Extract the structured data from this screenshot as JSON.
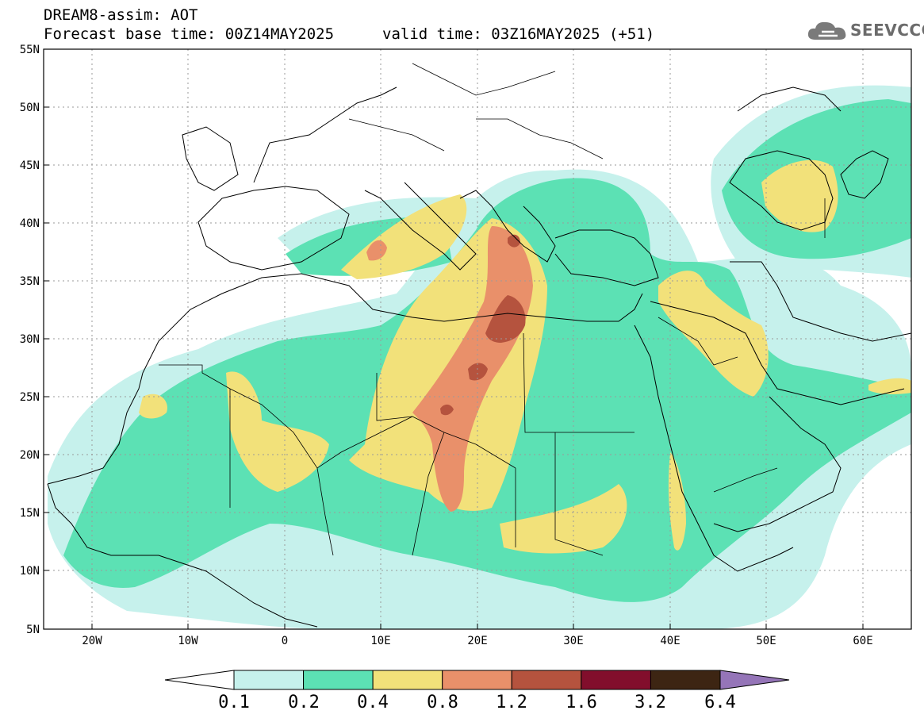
{
  "header": {
    "line1": "DREAM8-assim: AOT",
    "line2": "Forecast base time: 00Z14MAY2025",
    "line3": "valid time: 03Z16MAY2025 (+51)"
  },
  "logo": {
    "text": "SEEVCCC",
    "icon": "cloud-icon"
  },
  "map": {
    "lon_range": [
      -25,
      65
    ],
    "lat_range": [
      5,
      55
    ],
    "lon_ticks": [
      "20W",
      "10W",
      "0",
      "10E",
      "20E",
      "30E",
      "40E",
      "50E",
      "60E"
    ],
    "lat_ticks": [
      "5N",
      "10N",
      "15N",
      "20N",
      "25N",
      "30N",
      "35N",
      "40N",
      "45N",
      "50N",
      "55N"
    ],
    "grid": true
  },
  "colorbar": {
    "labels": [
      "0.1",
      "0.2",
      "0.4",
      "0.8",
      "1.2",
      "1.6",
      "3.2",
      "6.4"
    ],
    "colors": [
      "#c6f1ec",
      "#5ce1b4",
      "#f2e17a",
      "#e9906a",
      "#b5533e",
      "#820e2c",
      "#3d2513",
      "#9575b8"
    ],
    "under_color": "#ffffff"
  }
}
